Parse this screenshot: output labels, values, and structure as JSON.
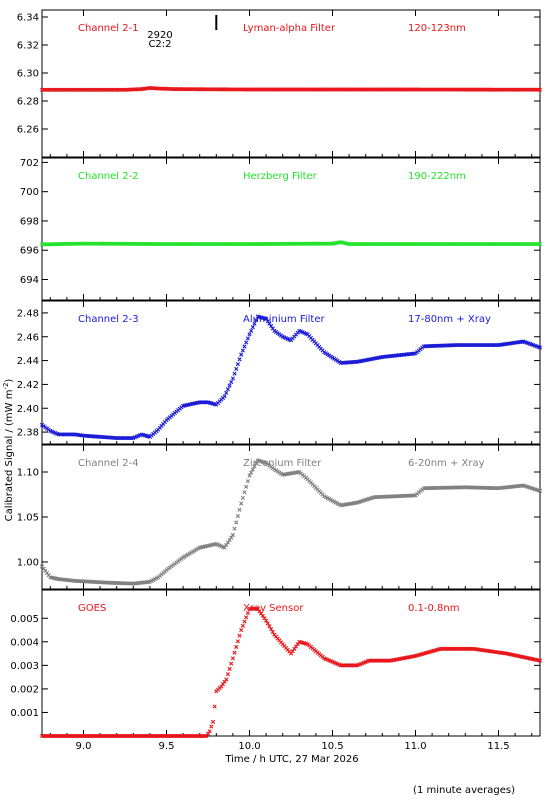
{
  "figure": {
    "xlabel": "Time / h UTC, 27 Mar 2026",
    "ylabel": "Calibrated Signal / (mW m",
    "ylabel_sup": "-2",
    "ylabel_end": ")",
    "footnote": "(1 minute averages)",
    "marker_top": "2920",
    "marker_bottom": "C2:2",
    "marker_x": 9.8
  },
  "chart_data": [
    {
      "type": "scatter",
      "series": [
        {
          "name": "Channel 2-1",
          "color": "#e8161a",
          "values": [
            [
              8.75,
              6.288
            ],
            [
              9.0,
              6.288
            ],
            [
              9.25,
              6.288
            ],
            [
              9.35,
              6.2885
            ],
            [
              9.4,
              6.2893
            ],
            [
              9.45,
              6.2889
            ],
            [
              9.55,
              6.2885
            ],
            [
              10.0,
              6.2882
            ],
            [
              10.5,
              6.2882
            ],
            [
              11.0,
              6.2882
            ],
            [
              11.5,
              6.2881
            ],
            [
              11.75,
              6.2881
            ]
          ]
        }
      ],
      "labels": [
        "Channel 2-1",
        "Lyman-alpha Filter",
        "120-123nm"
      ],
      "ylim": [
        6.24,
        6.345
      ],
      "yticks": [
        "6.26",
        "6.28",
        "6.30",
        "6.32",
        "6.34"
      ],
      "xlim": [
        8.75,
        11.75
      ]
    },
    {
      "type": "scatter",
      "series": [
        {
          "name": "Channel 2-2",
          "color": "#22e22a",
          "values": [
            [
              8.75,
              696.4
            ],
            [
              9.0,
              696.45
            ],
            [
              9.5,
              696.42
            ],
            [
              10.0,
              696.42
            ],
            [
              10.5,
              696.45
            ],
            [
              10.55,
              696.55
            ],
            [
              10.6,
              696.42
            ],
            [
              11.0,
              696.42
            ],
            [
              11.5,
              696.42
            ],
            [
              11.75,
              696.42
            ]
          ]
        }
      ],
      "labels": [
        "Channel 2-2",
        "Herzberg Filter",
        "190-222nm"
      ],
      "ylim": [
        692.6,
        702.3
      ],
      "yticks": [
        "694",
        "696",
        "698",
        "700",
        "702"
      ],
      "xlim": [
        8.75,
        11.75
      ]
    },
    {
      "type": "scatter",
      "series": [
        {
          "name": "Channel 2-3",
          "color": "#1a1ad6",
          "values": [
            [
              8.75,
              2.386
            ],
            [
              8.8,
              2.381
            ],
            [
              8.85,
              2.378
            ],
            [
              8.95,
              2.378
            ],
            [
              9.0,
              2.377
            ],
            [
              9.1,
              2.376
            ],
            [
              9.2,
              2.375
            ],
            [
              9.3,
              2.375
            ],
            [
              9.35,
              2.378
            ],
            [
              9.4,
              2.376
            ],
            [
              9.45,
              2.382
            ],
            [
              9.5,
              2.39
            ],
            [
              9.55,
              2.396
            ],
            [
              9.6,
              2.402
            ],
            [
              9.7,
              2.405
            ],
            [
              9.75,
              2.405
            ],
            [
              9.8,
              2.403
            ],
            [
              9.85,
              2.41
            ],
            [
              9.9,
              2.425
            ],
            [
              9.95,
              2.445
            ],
            [
              10.0,
              2.462
            ],
            [
              10.05,
              2.477
            ],
            [
              10.1,
              2.475
            ],
            [
              10.15,
              2.465
            ],
            [
              10.2,
              2.46
            ],
            [
              10.25,
              2.457
            ],
            [
              10.3,
              2.465
            ],
            [
              10.35,
              2.462
            ],
            [
              10.45,
              2.447
            ],
            [
              10.55,
              2.438
            ],
            [
              10.65,
              2.439
            ],
            [
              10.8,
              2.443
            ],
            [
              11.0,
              2.446
            ],
            [
              11.05,
              2.452
            ],
            [
              11.25,
              2.453
            ],
            [
              11.5,
              2.453
            ],
            [
              11.65,
              2.456
            ],
            [
              11.75,
              2.451
            ]
          ]
        }
      ],
      "labels": [
        "Channel 2-3",
        "Aluminium Filter",
        "17-80nm + Xray"
      ],
      "ylim": [
        2.37,
        2.49
      ],
      "yticks": [
        "2.38",
        "2.40",
        "2.42",
        "2.44",
        "2.46",
        "2.48"
      ],
      "xlim": [
        8.75,
        11.75
      ]
    },
    {
      "type": "scatter",
      "series": [
        {
          "name": "Channel 2-4",
          "color": "#808080",
          "values": [
            [
              8.75,
              0.995
            ],
            [
              8.8,
              0.983
            ],
            [
              8.85,
              0.981
            ],
            [
              8.95,
              0.979
            ],
            [
              9.05,
              0.978
            ],
            [
              9.15,
              0.977
            ],
            [
              9.3,
              0.976
            ],
            [
              9.4,
              0.978
            ],
            [
              9.45,
              0.983
            ],
            [
              9.5,
              0.991
            ],
            [
              9.6,
              1.005
            ],
            [
              9.7,
              1.016
            ],
            [
              9.8,
              1.02
            ],
            [
              9.85,
              1.016
            ],
            [
              9.9,
              1.03
            ],
            [
              9.95,
              1.065
            ],
            [
              10.0,
              1.096
            ],
            [
              10.05,
              1.113
            ],
            [
              10.1,
              1.11
            ],
            [
              10.15,
              1.103
            ],
            [
              10.2,
              1.097
            ],
            [
              10.3,
              1.1
            ],
            [
              10.35,
              1.092
            ],
            [
              10.45,
              1.073
            ],
            [
              10.55,
              1.063
            ],
            [
              10.65,
              1.066
            ],
            [
              10.75,
              1.072
            ],
            [
              11.0,
              1.074
            ],
            [
              11.05,
              1.082
            ],
            [
              11.3,
              1.083
            ],
            [
              11.5,
              1.082
            ],
            [
              11.65,
              1.085
            ],
            [
              11.75,
              1.079
            ]
          ]
        }
      ],
      "labels": [
        "Channel 2-4",
        "Zirconium Filter",
        "6-20nm + Xray"
      ],
      "ylim": [
        0.97,
        1.13
      ],
      "yticks": [
        "1.00",
        "1.05",
        "1.10"
      ],
      "xlim": [
        8.75,
        11.75
      ]
    },
    {
      "type": "scatter",
      "series": [
        {
          "name": "GOES",
          "color": "#e8161a",
          "values": [
            [
              8.75,
              0.0
            ],
            [
              9.5,
              0.0
            ],
            [
              9.74,
              0.0
            ],
            [
              9.76,
              0.0002
            ],
            [
              9.78,
              0.0006
            ],
            [
              9.8,
              0.0019
            ],
            [
              9.83,
              0.0021
            ],
            [
              9.86,
              0.0024
            ],
            [
              9.9,
              0.0033
            ],
            [
              9.95,
              0.0045
            ],
            [
              10.0,
              0.0054
            ],
            [
              10.05,
              0.0054
            ],
            [
              10.1,
              0.0049
            ],
            [
              10.15,
              0.0043
            ],
            [
              10.2,
              0.0039
            ],
            [
              10.25,
              0.0035
            ],
            [
              10.3,
              0.004
            ],
            [
              10.35,
              0.0039
            ],
            [
              10.45,
              0.0033
            ],
            [
              10.55,
              0.003
            ],
            [
              10.65,
              0.003
            ],
            [
              10.72,
              0.0032
            ],
            [
              10.85,
              0.0032
            ],
            [
              11.0,
              0.0034
            ],
            [
              11.15,
              0.0037
            ],
            [
              11.35,
              0.0037
            ],
            [
              11.55,
              0.0035
            ],
            [
              11.75,
              0.0032
            ]
          ]
        }
      ],
      "labels": [
        "GOES",
        "Xray Sensor",
        "0.1-0.8nm"
      ],
      "ylim": [
        0.0,
        0.0062
      ],
      "yticks": [
        "0.001",
        "0.002",
        "0.003",
        "0.004",
        "0.005"
      ],
      "xlim": [
        8.75,
        11.75
      ],
      "xticks": [
        "9.0",
        "9.5",
        "10.0",
        "10.5",
        "11.0",
        "11.5"
      ]
    }
  ]
}
